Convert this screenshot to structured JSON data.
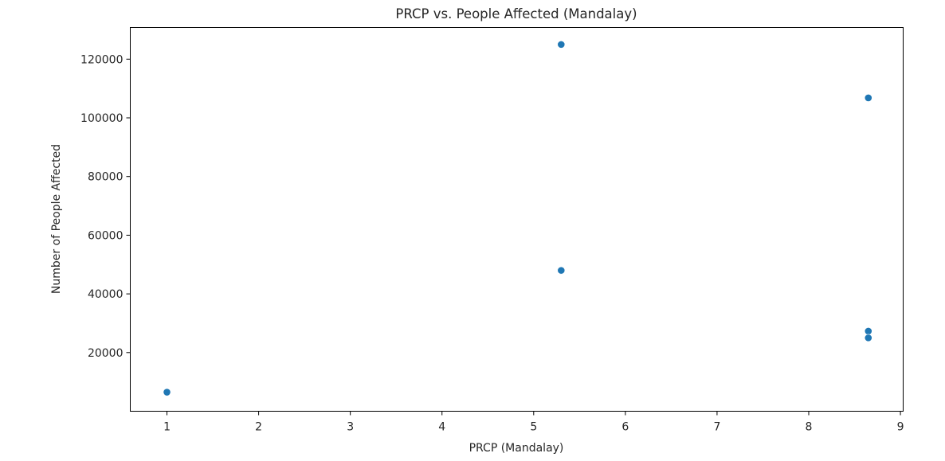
{
  "chart_data": {
    "type": "scatter",
    "title": "PRCP vs. People Affected (Mandalay)",
    "xlabel": "PRCP (Mandalay)",
    "ylabel": "Number of People Affected",
    "xlim": [
      0.6,
      9.03
    ],
    "ylim": [
      0,
      130800
    ],
    "xticks": [
      1,
      2,
      3,
      4,
      5,
      6,
      7,
      8,
      9
    ],
    "yticks": [
      20000,
      40000,
      60000,
      80000,
      100000,
      120000
    ],
    "grid": false,
    "marker_color": "#1f77b4",
    "points": [
      {
        "x": 1.0,
        "y": 6500
      },
      {
        "x": 5.3,
        "y": 125000
      },
      {
        "x": 5.3,
        "y": 48000
      },
      {
        "x": 8.65,
        "y": 106800
      },
      {
        "x": 8.65,
        "y": 27300
      },
      {
        "x": 8.65,
        "y": 25000
      }
    ]
  }
}
